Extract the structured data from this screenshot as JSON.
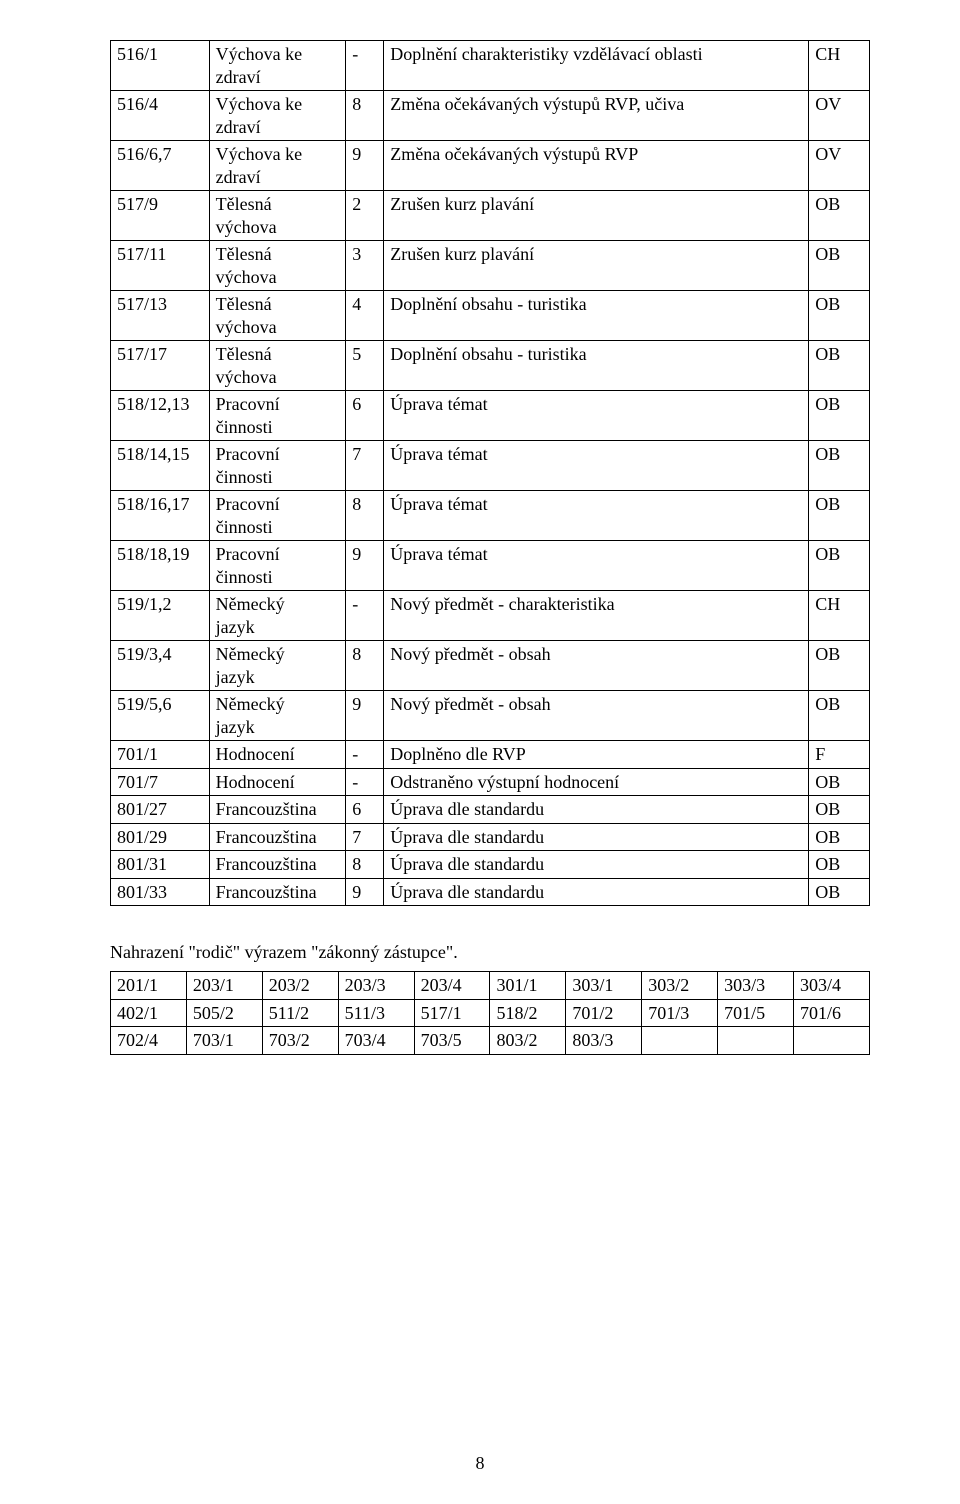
{
  "main_table": {
    "rows": [
      {
        "r": "516/1",
        "subj": "Výchova ke zdraví",
        "g": "-",
        "desc": "Doplnění charakteristiky vzdělávací oblasti",
        "code": "CH"
      },
      {
        "r": "516/4",
        "subj": "Výchova ke zdraví",
        "g": "8",
        "desc": "Změna očekávaných výstupů RVP, učiva",
        "code": "OV"
      },
      {
        "r": "516/6,7",
        "subj": "Výchova ke zdraví",
        "g": "9",
        "desc": "Změna očekávaných výstupů RVP",
        "code": "OV"
      },
      {
        "r": "517/9",
        "subj": "Tělesná výchova",
        "g": "2",
        "desc": "Zrušen kurz plavání",
        "code": "OB"
      },
      {
        "r": "517/11",
        "subj": "Tělesná výchova",
        "g": "3",
        "desc": "Zrušen kurz plavání",
        "code": "OB"
      },
      {
        "r": "517/13",
        "subj": "Tělesná výchova",
        "g": "4",
        "desc": "Doplnění obsahu - turistika",
        "code": "OB"
      },
      {
        "r": "517/17",
        "subj": "Tělesná výchova",
        "g": "5",
        "desc": "Doplnění obsahu - turistika",
        "code": "OB"
      },
      {
        "r": "518/12,13",
        "subj": "Pracovní činnosti",
        "g": "6",
        "desc": "Úprava témat",
        "code": "OB"
      },
      {
        "r": "518/14,15",
        "subj": "Pracovní činnosti",
        "g": "7",
        "desc": "Úprava témat",
        "code": "OB"
      },
      {
        "r": "518/16,17",
        "subj": "Pracovní činnosti",
        "g": "8",
        "desc": "Úprava témat",
        "code": "OB"
      },
      {
        "r": "518/18,19",
        "subj": "Pracovní činnosti",
        "g": "9",
        "desc": "Úprava témat",
        "code": "OB"
      },
      {
        "r": "519/1,2",
        "subj": "Německý jazyk",
        "g": "-",
        "desc": "Nový předmět - charakteristika",
        "code": "CH"
      },
      {
        "r": "519/3,4",
        "subj": "Německý jazyk",
        "g": "8",
        "desc": "Nový předmět - obsah",
        "code": "OB"
      },
      {
        "r": "519/5,6",
        "subj": "Německý jazyk",
        "g": "9",
        "desc": "Nový předmět - obsah",
        "code": "OB"
      },
      {
        "r": "701/1",
        "subj": "Hodnocení",
        "g": "-",
        "desc": "Doplněno dle RVP",
        "code": "F"
      },
      {
        "r": "701/7",
        "subj": "Hodnocení",
        "g": "-",
        "desc": "Odstraněno výstupní hodnocení",
        "code": "OB"
      },
      {
        "r": "801/27",
        "subj": "Francouzština",
        "g": "6",
        "desc": "Úprava dle standardu",
        "code": "OB"
      },
      {
        "r": "801/29",
        "subj": "Francouzština",
        "g": "7",
        "desc": "Úprava dle standardu",
        "code": "OB"
      },
      {
        "r": "801/31",
        "subj": "Francouzština",
        "g": "8",
        "desc": "Úprava dle standardu",
        "code": "OB"
      },
      {
        "r": "801/33",
        "subj": "Francouzština",
        "g": "9",
        "desc": "Úprava dle standardu",
        "code": "OB"
      }
    ],
    "two_line_subjects": {
      "0": true,
      "1": true,
      "2": true,
      "3": true,
      "4": true,
      "5": true,
      "6": true,
      "7": true,
      "8": true,
      "9": true,
      "10": true,
      "11": true,
      "12": true,
      "13": true
    }
  },
  "paragraph": "Nahrazení \"rodič\" výrazem \"zákonný zástupce\".",
  "grid": {
    "rows": [
      [
        "201/1",
        "203/1",
        "203/2",
        "203/3",
        "203/4",
        "301/1",
        "303/1",
        "303/2",
        "303/3",
        "303/4"
      ],
      [
        "402/1",
        "505/2",
        "511/2",
        "511/3",
        "517/1",
        "518/2",
        "701/2",
        "701/3",
        "701/5",
        "701/6"
      ],
      [
        "702/4",
        "703/1",
        "703/2",
        "703/4",
        "703/5",
        "803/2",
        "803/3",
        "",
        "",
        ""
      ]
    ]
  },
  "page_number": "8"
}
